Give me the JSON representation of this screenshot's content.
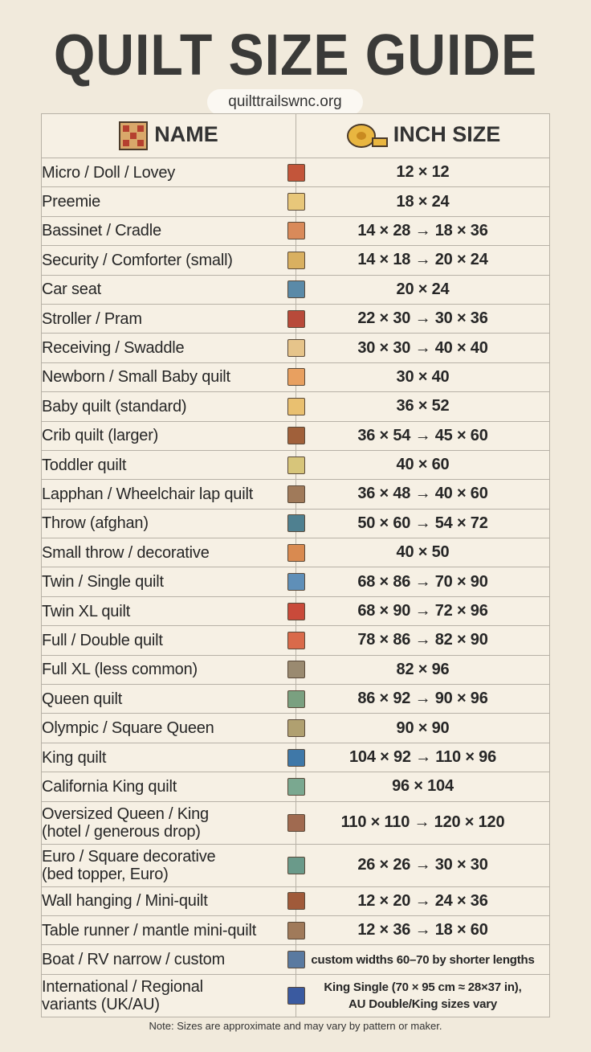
{
  "header": {
    "title": "QUILT SIZE GUIDE",
    "url": "quilttrailswnc.org"
  },
  "table": {
    "columns": [
      "NAME",
      "INCH SIZE"
    ],
    "rows": [
      [
        "Micro / Doll / Lovey",
        "12 × 12"
      ],
      [
        "Preemie",
        "18 × 24"
      ],
      [
        "Bassinet / Cradle",
        "14 × 28 → 18 × 36"
      ],
      [
        "Security / Comforter (small)",
        "14 × 18 → 20 × 24"
      ],
      [
        "Car seat",
        "20 × 24"
      ],
      [
        "Stroller / Pram",
        "22 × 30 → 30 × 36"
      ],
      [
        "Receiving / Swaddle",
        "30 × 30 → 40 × 40"
      ],
      [
        "Newborn / Small Baby quilt",
        "30 × 40"
      ],
      [
        "Baby quilt (standard)",
        "36 × 52"
      ],
      [
        "Crib quilt (larger)",
        "36 × 54 → 45 × 60"
      ],
      [
        "Toddler quilt",
        "40 × 60"
      ],
      [
        "Lapphan / Wheelchair lap quilt",
        "36 × 48 → 40 × 60"
      ],
      [
        "Throw (afghan)",
        "50 × 60 → 54 × 72"
      ],
      [
        "Small throw / decorative",
        "40 × 50"
      ],
      [
        "Twin / Single quilt",
        "68 × 86 → 70 × 90"
      ],
      [
        "Twin XL quilt",
        "68 × 90 → 72 × 96"
      ],
      [
        "Full / Double quilt",
        "78 × 86 → 82 × 90"
      ],
      [
        "Full XL (less common)",
        "82 × 96"
      ],
      [
        "Queen quilt",
        "86 × 92 → 90 × 96"
      ],
      [
        "Olympic / Square Queen",
        "90 × 90"
      ],
      [
        "King quilt",
        "104 × 92 → 110 × 96"
      ],
      [
        "California King quilt",
        "96 × 104"
      ],
      [
        [
          "Oversized Queen / King",
          "(hotel / generous drop)"
        ],
        "110 × 110 → 120 × 120"
      ],
      [
        [
          "Euro / Square decorative",
          "(bed topper, Euro)"
        ],
        "26 × 26 → 30 × 30"
      ],
      [
        "Wall hanging / Mini-quilt",
        "12 × 20 → 24 × 36"
      ],
      [
        "Table runner / mantle mini-quilt",
        "12 × 36 → 18 × 60"
      ],
      [
        "Boat / RV narrow / custom",
        "custom widths 60–70 by shorter lengths"
      ],
      [
        [
          "International / Regional",
          "variants (UK/AU)"
        ],
        [
          "King Single (70 × 95 cm ≈ 28×37 in),",
          "AU Double/King sizes vary"
        ]
      ]
    ]
  },
  "note": "Note: Sizes are approximate and may vary by pattern or maker."
}
